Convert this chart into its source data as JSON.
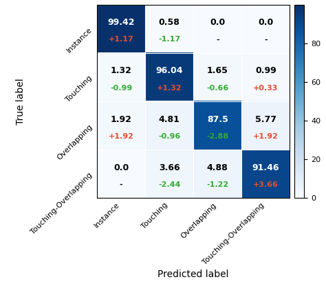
{
  "matrix": [
    [
      99.42,
      0.58,
      0.0,
      0.0
    ],
    [
      1.32,
      96.04,
      1.65,
      0.99
    ],
    [
      1.92,
      4.81,
      87.5,
      5.77
    ],
    [
      0.0,
      3.66,
      4.88,
      91.46
    ]
  ],
  "delta": [
    [
      "+1.17",
      "-1.17",
      "-",
      "-"
    ],
    [
      "-0.99",
      "+1.32",
      "-0.66",
      "+0.33"
    ],
    [
      "+1.92",
      "-0.96",
      "-2.88",
      "+1.92"
    ],
    [
      "-",
      "-2.44",
      "-1.22",
      "+3.66"
    ]
  ],
  "labels": [
    "Instance",
    "Touching",
    "Overlapping",
    "Touching-Overlapping"
  ],
  "xlabel": "Predicted label",
  "ylabel": "True label",
  "cmap": "Blues",
  "vmin": 0,
  "vmax": 100,
  "colorbar_ticks": [
    0,
    20,
    40,
    60,
    80
  ],
  "figsize": [
    4.74,
    4.12
  ],
  "dpi": 100,
  "main_fontsize": 9,
  "delta_fontsize": 8,
  "tick_fontsize": 8,
  "axis_label_fontsize": 10,
  "positive_color": "#e05030",
  "negative_color": "#33aa33",
  "dark_bg_threshold": 0.55
}
